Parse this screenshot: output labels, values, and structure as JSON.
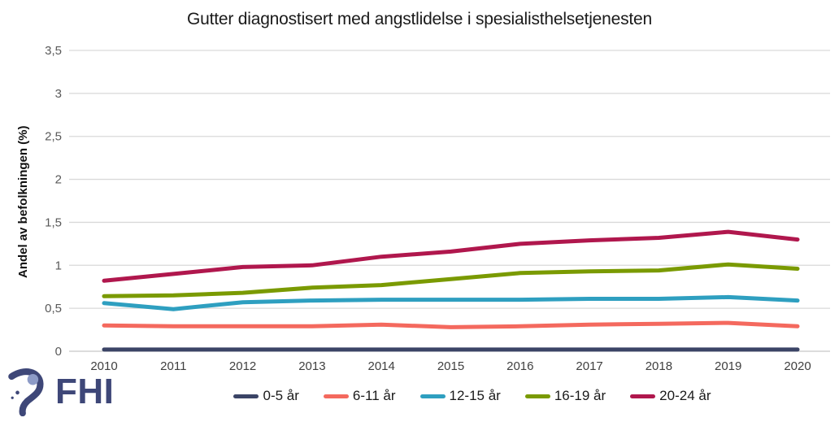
{
  "title": "Gutter diagnostisert med angstlidelse i spesialisthelsetjenesten",
  "chart_data": {
    "type": "line",
    "title": "Gutter diagnostisert med angstlidelse i spesialisthelsetjenesten",
    "xlabel": "",
    "ylabel": "Andel av befolkningen (%)",
    "x": [
      2010,
      2011,
      2012,
      2013,
      2014,
      2015,
      2016,
      2017,
      2018,
      2019,
      2020
    ],
    "ylim": [
      0,
      3.5
    ],
    "ytick_labels": [
      "0",
      "0,5",
      "1",
      "1,5",
      "2",
      "2,5",
      "3",
      "3,5"
    ],
    "grid": true,
    "grid_color": "#D9D9D9",
    "axis_color": "#C6C6C6",
    "legend_position": "bottom",
    "series": [
      {
        "name": "0-5 år",
        "color": "#3B4466",
        "values": [
          0.02,
          0.02,
          0.02,
          0.02,
          0.02,
          0.02,
          0.02,
          0.02,
          0.02,
          0.02,
          0.02
        ]
      },
      {
        "name": "6-11 år",
        "color": "#F4695E",
        "values": [
          0.3,
          0.29,
          0.29,
          0.29,
          0.31,
          0.28,
          0.29,
          0.31,
          0.32,
          0.33,
          0.29
        ]
      },
      {
        "name": "12-15 år",
        "color": "#2E9FC0",
        "values": [
          0.56,
          0.49,
          0.57,
          0.59,
          0.6,
          0.6,
          0.6,
          0.61,
          0.61,
          0.63,
          0.59
        ]
      },
      {
        "name": "16-19 år",
        "color": "#7A9A01",
        "values": [
          0.64,
          0.65,
          0.68,
          0.74,
          0.77,
          0.84,
          0.91,
          0.93,
          0.94,
          1.01,
          0.96
        ]
      },
      {
        "name": "20-24 år",
        "color": "#B0174D",
        "values": [
          0.82,
          0.9,
          0.98,
          1.0,
          1.1,
          1.16,
          1.25,
          1.29,
          1.32,
          1.39,
          1.3
        ]
      }
    ]
  },
  "branding": {
    "logo_text": "FHI",
    "logo_color": "#3E4778",
    "logo_head_color": "#8D9BC7"
  }
}
